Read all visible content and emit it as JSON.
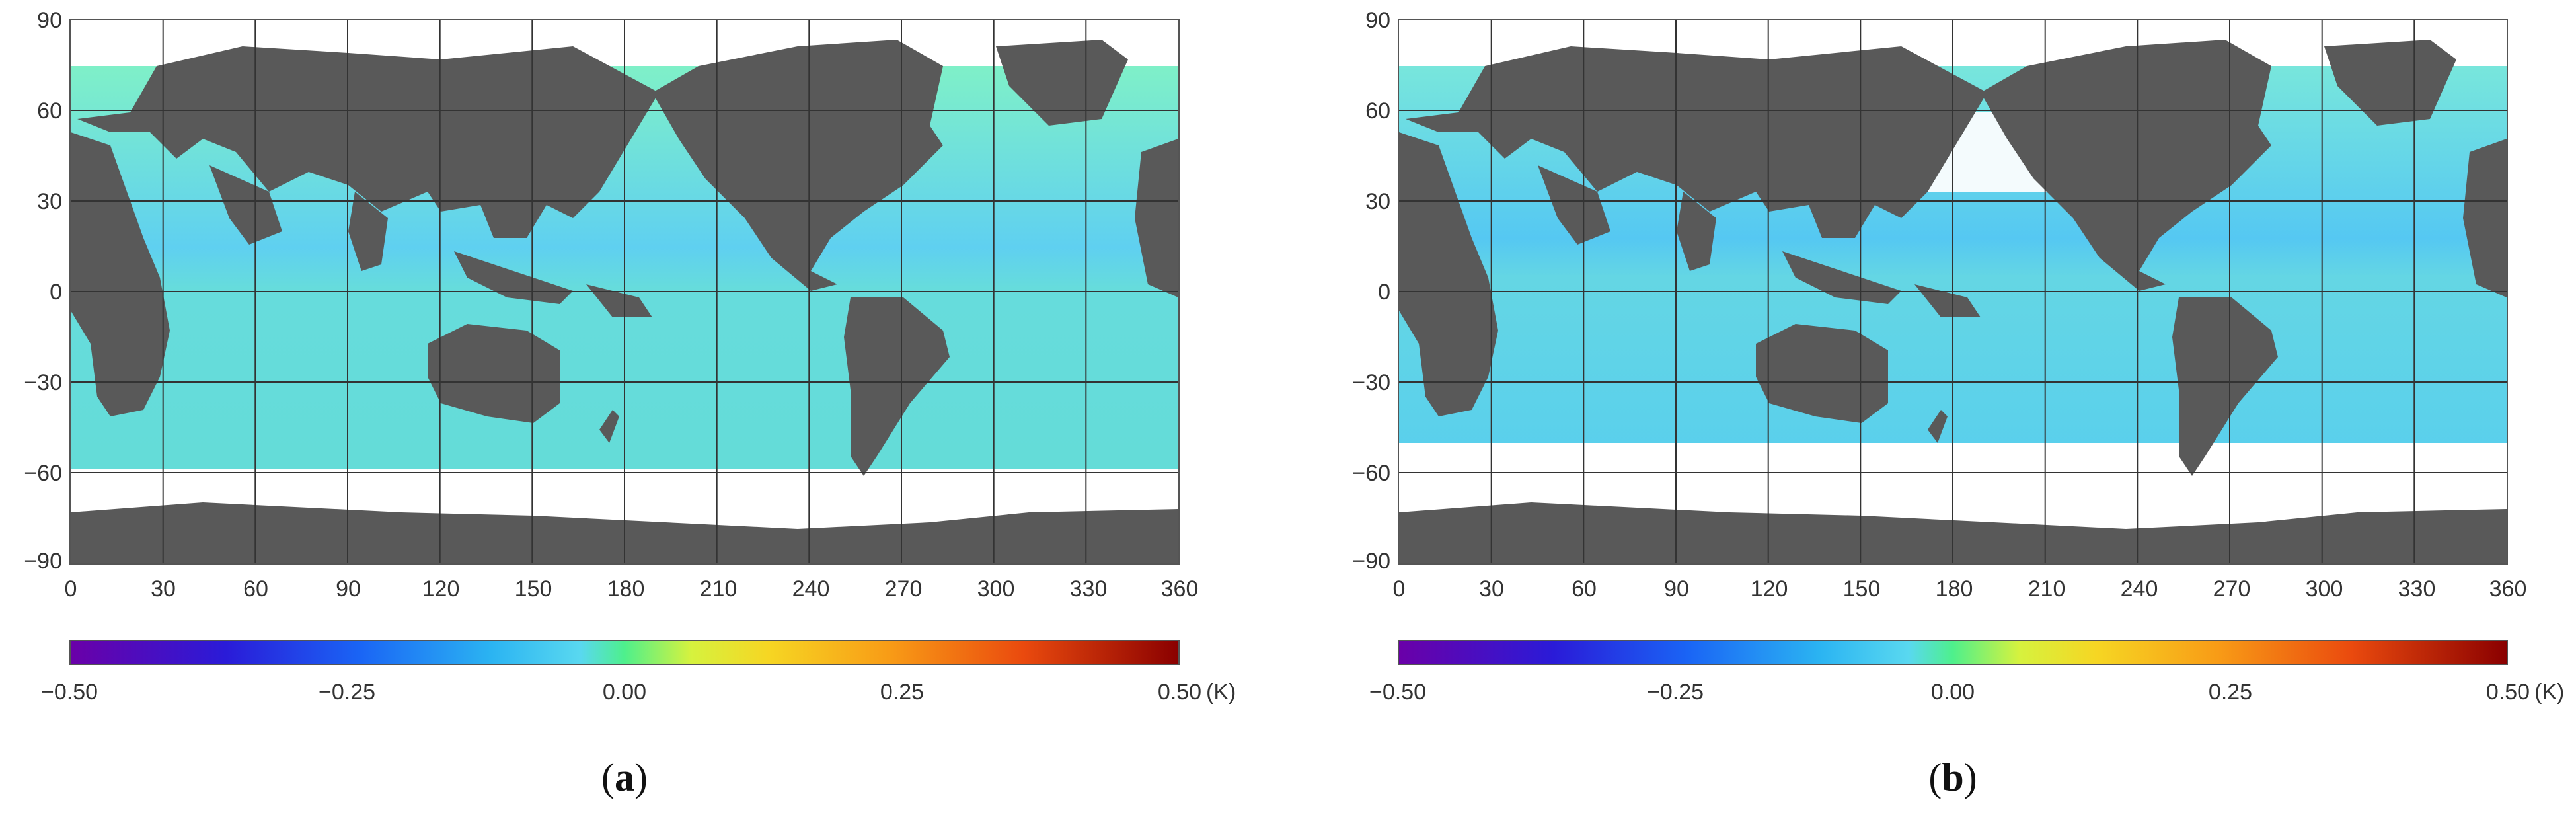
{
  "panels": [
    {
      "label_open": "(",
      "label_letter": "a",
      "label_close": ")",
      "y_ticks": [
        "90",
        "60",
        "30",
        "0",
        "−30",
        "−60",
        "−90"
      ],
      "x_ticks": [
        "0",
        "30",
        "60",
        "90",
        "120",
        "150",
        "180",
        "210",
        "240",
        "270",
        "300",
        "330",
        "360"
      ],
      "colorbar_ticks": [
        "−0.50",
        "−0.25",
        "0.00",
        "0.25",
        "0.50"
      ],
      "colorbar_unit": "(K)"
    },
    {
      "label_open": "(",
      "label_letter": "b",
      "label_close": ")",
      "y_ticks": [
        "90",
        "60",
        "30",
        "0",
        "−30",
        "−60",
        "−90"
      ],
      "x_ticks": [
        "0",
        "30",
        "60",
        "90",
        "120",
        "150",
        "180",
        "210",
        "240",
        "270",
        "300",
        "330",
        "360"
      ],
      "colorbar_ticks": [
        "−0.50",
        "−0.25",
        "0.00",
        "0.25",
        "0.50"
      ],
      "colorbar_unit": "(K)"
    }
  ],
  "chart_data": [
    {
      "type": "heatmap",
      "xlim": [
        0,
        360
      ],
      "ylim": [
        -90,
        90
      ],
      "colorbar_range": [
        -0.5,
        0.5
      ],
      "colors": {
        "land": "#595959",
        "ocean": "#5fd6ee",
        "missing": "#ffffff",
        "grid": "#333333"
      }
    },
    {
      "type": "heatmap",
      "xlim": [
        0,
        360
      ],
      "ylim": [
        -90,
        90
      ],
      "colorbar_range": [
        -0.5,
        0.5
      ],
      "colors": {
        "land": "#595959",
        "ocean": "#5fd6ee",
        "missing": "#ffffff",
        "grid": "#333333"
      }
    }
  ]
}
